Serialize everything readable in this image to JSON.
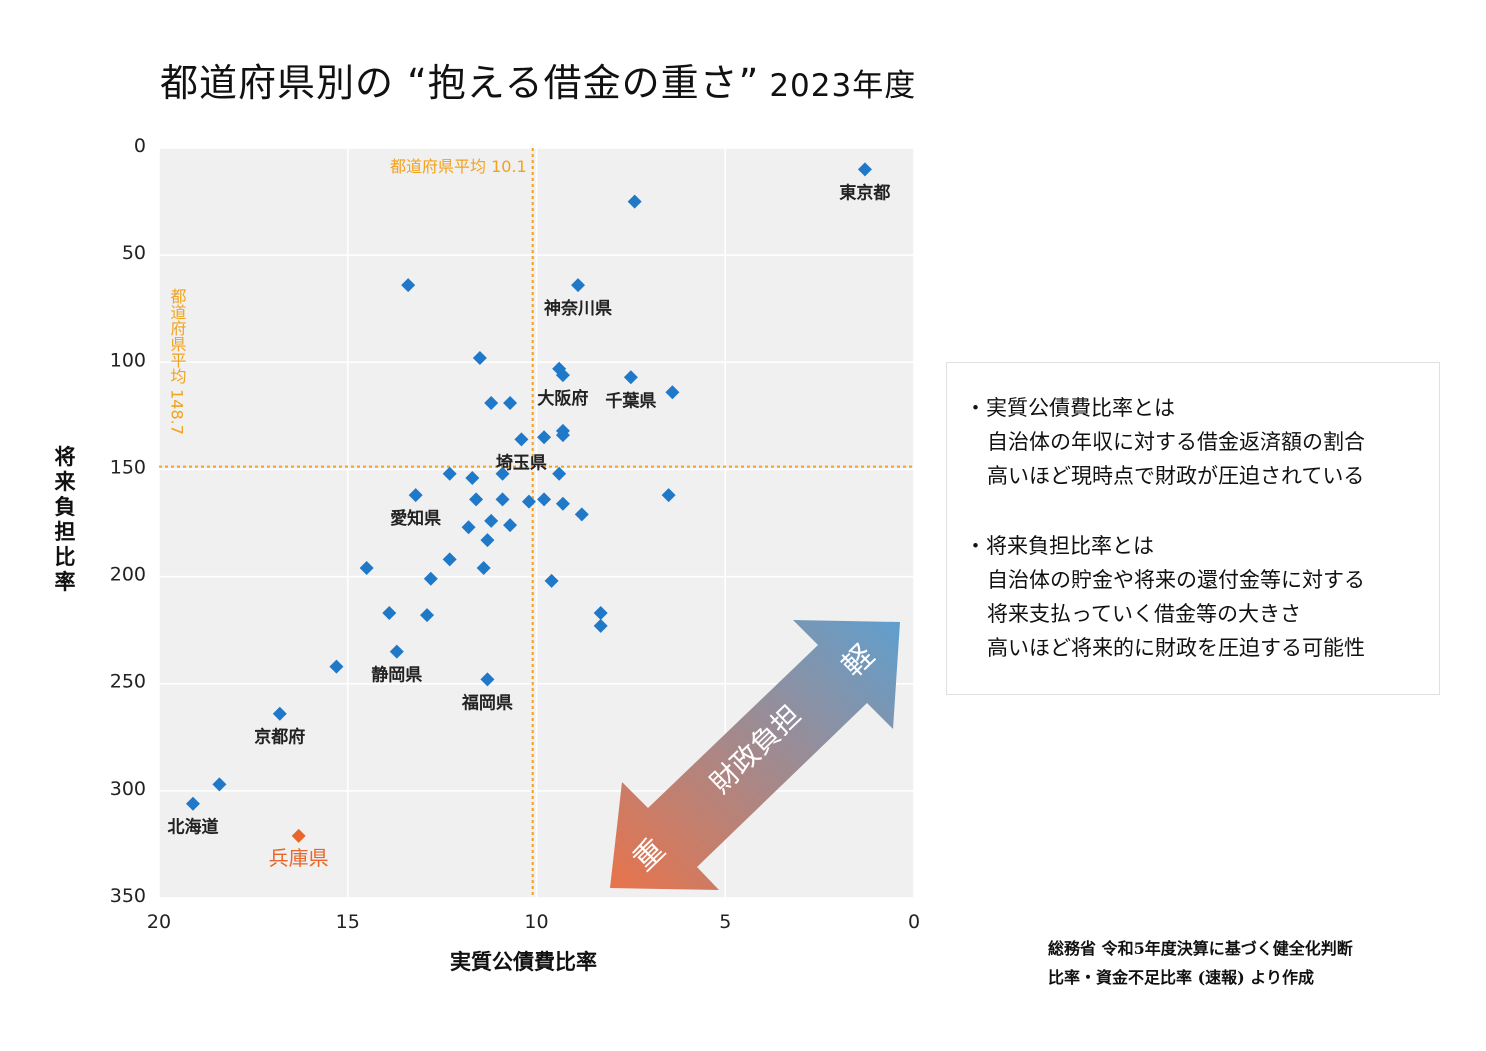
{
  "title": {
    "main": "都道府県別の “抱える借金の重さ”",
    "year": "2023年度"
  },
  "colors": {
    "point": "#1f78c8",
    "highlight": "#e8662a",
    "average_line": "#f2a21e",
    "plot_bg": "#f0f0f0",
    "arrow_heavy": "#e8734a",
    "arrow_light": "#5f9fce"
  },
  "chart_data": {
    "type": "scatter",
    "xlabel": "実質公債費比率",
    "ylabel": "将来負担比率",
    "xlim": [
      20,
      0
    ],
    "ylim": [
      350,
      0
    ],
    "x_reversed": true,
    "y_reversed": true,
    "xticks": [
      "20",
      "15",
      "10",
      "5",
      "0"
    ],
    "yticks": [
      "0",
      "50",
      "100",
      "150",
      "200",
      "250",
      "300",
      "350"
    ],
    "grid": true,
    "averages": {
      "x": 10.1,
      "x_label": "都道府県平均 10.1",
      "y": 148.7,
      "y_label": "都道府県平均 148.7"
    },
    "points": [
      {
        "x": 1.3,
        "y": 10,
        "label": "東京都"
      },
      {
        "x": 7.4,
        "y": 25,
        "label": ""
      },
      {
        "x": 8.9,
        "y": 64,
        "label": "神奈川県"
      },
      {
        "x": 13.4,
        "y": 64,
        "label": ""
      },
      {
        "x": 7.5,
        "y": 107,
        "label": "千葉県"
      },
      {
        "x": 6.4,
        "y": 114,
        "label": ""
      },
      {
        "x": 11.5,
        "y": 98,
        "label": ""
      },
      {
        "x": 9.4,
        "y": 103,
        "label": ""
      },
      {
        "x": 9.3,
        "y": 106,
        "label": "大阪府"
      },
      {
        "x": 11.2,
        "y": 119,
        "label": ""
      },
      {
        "x": 10.7,
        "y": 119,
        "label": ""
      },
      {
        "x": 9.3,
        "y": 132,
        "label": ""
      },
      {
        "x": 9.3,
        "y": 134,
        "label": ""
      },
      {
        "x": 9.8,
        "y": 135,
        "label": ""
      },
      {
        "x": 10.4,
        "y": 136,
        "label": "埼玉県"
      },
      {
        "x": 12.3,
        "y": 152,
        "label": ""
      },
      {
        "x": 11.7,
        "y": 154,
        "label": ""
      },
      {
        "x": 10.9,
        "y": 152,
        "label": ""
      },
      {
        "x": 9.4,
        "y": 152,
        "label": ""
      },
      {
        "x": 6.5,
        "y": 162,
        "label": ""
      },
      {
        "x": 13.2,
        "y": 162,
        "label": "愛知県"
      },
      {
        "x": 11.6,
        "y": 164,
        "label": ""
      },
      {
        "x": 10.9,
        "y": 164,
        "label": ""
      },
      {
        "x": 10.2,
        "y": 165,
        "label": ""
      },
      {
        "x": 9.8,
        "y": 164,
        "label": ""
      },
      {
        "x": 9.3,
        "y": 166,
        "label": ""
      },
      {
        "x": 8.8,
        "y": 171,
        "label": ""
      },
      {
        "x": 11.2,
        "y": 174,
        "label": ""
      },
      {
        "x": 10.7,
        "y": 176,
        "label": ""
      },
      {
        "x": 11.8,
        "y": 177,
        "label": ""
      },
      {
        "x": 11.3,
        "y": 183,
        "label": ""
      },
      {
        "x": 12.3,
        "y": 192,
        "label": ""
      },
      {
        "x": 14.5,
        "y": 196,
        "label": ""
      },
      {
        "x": 11.4,
        "y": 196,
        "label": ""
      },
      {
        "x": 12.8,
        "y": 201,
        "label": ""
      },
      {
        "x": 9.6,
        "y": 202,
        "label": ""
      },
      {
        "x": 13.9,
        "y": 217,
        "label": ""
      },
      {
        "x": 12.9,
        "y": 218,
        "label": ""
      },
      {
        "x": 8.3,
        "y": 217,
        "label": ""
      },
      {
        "x": 8.3,
        "y": 223,
        "label": ""
      },
      {
        "x": 13.7,
        "y": 235,
        "label": "静岡県"
      },
      {
        "x": 15.3,
        "y": 242,
        "label": ""
      },
      {
        "x": 11.3,
        "y": 248,
        "label": "福岡県"
      },
      {
        "x": 16.8,
        "y": 264,
        "label": "京都府"
      },
      {
        "x": 18.4,
        "y": 297,
        "label": ""
      },
      {
        "x": 19.1,
        "y": 306,
        "label": "北海道"
      },
      {
        "x": 16.3,
        "y": 321,
        "label": "兵庫県",
        "highlight": true
      }
    ]
  },
  "arrow": {
    "center_label": "財政負担",
    "heavy_label": "重",
    "light_label": "軽"
  },
  "notes": [
    {
      "head": "・実質公債費比率とは",
      "lines": [
        "自治体の年収に対する借金返済額の割合",
        "高いほど現時点で財政が圧迫されている"
      ]
    },
    {
      "head": "・将来負担比率とは",
      "lines": [
        "自治体の貯金や将来の還付金等に対する",
        "将来支払っていく借金等の大きさ",
        "高いほど将来的に財政を圧迫する可能性"
      ]
    }
  ],
  "source": {
    "line1": "総務省 令和5年度決算に基づく健全化判断",
    "line2": "比率・資金不足比率 (速報) より作成"
  }
}
